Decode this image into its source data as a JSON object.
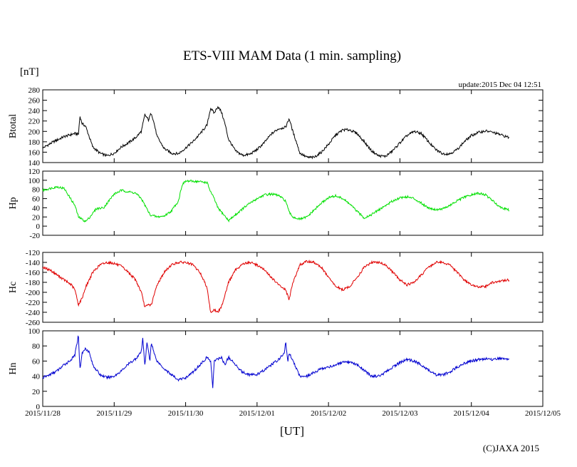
{
  "chart_data": {
    "type": "line",
    "title": "ETS-VIII MAM Data (1 min. sampling)",
    "unit_label": "[nT]",
    "update_text": "update:2015 Dec 04 12:51",
    "xlabel": "[UT]",
    "copyright": "(C)JAXA 2015",
    "x_ticks": [
      "2015/11/28",
      "2015/11/29",
      "2015/11/30",
      "2015/12/01",
      "2015/12/02",
      "2015/12/03",
      "2015/12/04",
      "2015/12/05"
    ],
    "xlim_days": [
      0,
      7
    ],
    "data_end_day": 6.53,
    "panels": [
      {
        "name": "Btotal",
        "ylabel": "Btotal",
        "ylim": [
          140,
          280
        ],
        "yticks": [
          140,
          160,
          180,
          200,
          220,
          240,
          260,
          280
        ],
        "color": "#000000",
        "points": [
          [
            0,
            168
          ],
          [
            0.15,
            180
          ],
          [
            0.3,
            190
          ],
          [
            0.45,
            196
          ],
          [
            0.5,
            194
          ],
          [
            0.52,
            230
          ],
          [
            0.55,
            215
          ],
          [
            0.6,
            210
          ],
          [
            0.7,
            170
          ],
          [
            0.8,
            158
          ],
          [
            0.9,
            153
          ],
          [
            1.0,
            158
          ],
          [
            1.1,
            170
          ],
          [
            1.2,
            178
          ],
          [
            1.3,
            188
          ],
          [
            1.38,
            200
          ],
          [
            1.43,
            232
          ],
          [
            1.48,
            222
          ],
          [
            1.52,
            236
          ],
          [
            1.56,
            215
          ],
          [
            1.6,
            190
          ],
          [
            1.7,
            167
          ],
          [
            1.8,
            158
          ],
          [
            1.9,
            157
          ],
          [
            2.0,
            168
          ],
          [
            2.1,
            180
          ],
          [
            2.2,
            195
          ],
          [
            2.3,
            212
          ],
          [
            2.35,
            245
          ],
          [
            2.4,
            235
          ],
          [
            2.45,
            248
          ],
          [
            2.5,
            238
          ],
          [
            2.55,
            215
          ],
          [
            2.6,
            185
          ],
          [
            2.7,
            162
          ],
          [
            2.8,
            154
          ],
          [
            2.9,
            156
          ],
          [
            3.0,
            165
          ],
          [
            3.1,
            178
          ],
          [
            3.2,
            195
          ],
          [
            3.3,
            205
          ],
          [
            3.4,
            208
          ],
          [
            3.45,
            225
          ],
          [
            3.5,
            200
          ],
          [
            3.55,
            180
          ],
          [
            3.6,
            158
          ],
          [
            3.7,
            150
          ],
          [
            3.8,
            150
          ],
          [
            3.9,
            160
          ],
          [
            4.0,
            175
          ],
          [
            4.1,
            193
          ],
          [
            4.2,
            203
          ],
          [
            4.3,
            203
          ],
          [
            4.4,
            196
          ],
          [
            4.5,
            180
          ],
          [
            4.6,
            163
          ],
          [
            4.7,
            153
          ],
          [
            4.8,
            152
          ],
          [
            4.9,
            163
          ],
          [
            5.0,
            178
          ],
          [
            5.1,
            192
          ],
          [
            5.2,
            200
          ],
          [
            5.3,
            196
          ],
          [
            5.4,
            180
          ],
          [
            5.5,
            165
          ],
          [
            5.6,
            157
          ],
          [
            5.7,
            157
          ],
          [
            5.8,
            165
          ],
          [
            5.9,
            180
          ],
          [
            6.0,
            192
          ],
          [
            6.1,
            198
          ],
          [
            6.2,
            201
          ],
          [
            6.3,
            198
          ],
          [
            6.4,
            194
          ],
          [
            6.53,
            188
          ]
        ]
      },
      {
        "name": "Hp",
        "ylabel": "Hp",
        "ylim": [
          -20,
          120
        ],
        "yticks": [
          -20,
          0,
          20,
          40,
          60,
          80,
          100,
          120
        ],
        "color": "#00e000",
        "points": [
          [
            0,
            78
          ],
          [
            0.1,
            82
          ],
          [
            0.2,
            86
          ],
          [
            0.3,
            82
          ],
          [
            0.35,
            70
          ],
          [
            0.45,
            45
          ],
          [
            0.5,
            20
          ],
          [
            0.6,
            10
          ],
          [
            0.65,
            18
          ],
          [
            0.75,
            38
          ],
          [
            0.85,
            40
          ],
          [
            0.9,
            50
          ],
          [
            1.0,
            70
          ],
          [
            1.1,
            78
          ],
          [
            1.2,
            75
          ],
          [
            1.3,
            72
          ],
          [
            1.38,
            60
          ],
          [
            1.45,
            40
          ],
          [
            1.5,
            25
          ],
          [
            1.6,
            20
          ],
          [
            1.7,
            22
          ],
          [
            1.8,
            33
          ],
          [
            1.9,
            55
          ],
          [
            1.95,
            90
          ],
          [
            2.0,
            98
          ],
          [
            2.1,
            98
          ],
          [
            2.2,
            97
          ],
          [
            2.3,
            95
          ],
          [
            2.35,
            75
          ],
          [
            2.4,
            60
          ],
          [
            2.45,
            40
          ],
          [
            2.55,
            22
          ],
          [
            2.6,
            12
          ],
          [
            2.7,
            25
          ],
          [
            2.8,
            38
          ],
          [
            2.9,
            50
          ],
          [
            3.0,
            60
          ],
          [
            3.1,
            68
          ],
          [
            3.2,
            70
          ],
          [
            3.3,
            67
          ],
          [
            3.4,
            55
          ],
          [
            3.45,
            30
          ],
          [
            3.5,
            20
          ],
          [
            3.6,
            15
          ],
          [
            3.7,
            20
          ],
          [
            3.8,
            35
          ],
          [
            3.9,
            50
          ],
          [
            4.0,
            62
          ],
          [
            4.1,
            66
          ],
          [
            4.2,
            60
          ],
          [
            4.3,
            48
          ],
          [
            4.4,
            32
          ],
          [
            4.5,
            18
          ],
          [
            4.6,
            25
          ],
          [
            4.7,
            35
          ],
          [
            4.8,
            45
          ],
          [
            4.9,
            55
          ],
          [
            5.0,
            62
          ],
          [
            5.1,
            64
          ],
          [
            5.2,
            60
          ],
          [
            5.3,
            50
          ],
          [
            5.4,
            40
          ],
          [
            5.5,
            36
          ],
          [
            5.6,
            38
          ],
          [
            5.7,
            45
          ],
          [
            5.8,
            55
          ],
          [
            5.9,
            63
          ],
          [
            6.0,
            68
          ],
          [
            6.1,
            72
          ],
          [
            6.2,
            68
          ],
          [
            6.3,
            55
          ],
          [
            6.4,
            42
          ],
          [
            6.53,
            35
          ]
        ]
      },
      {
        "name": "Hc",
        "ylabel": "Hc",
        "ylim": [
          -260,
          -120
        ],
        "yticks": [
          -260,
          -240,
          -220,
          -200,
          -180,
          -160,
          -140,
          -120
        ],
        "color": "#e00000",
        "points": [
          [
            0,
            -150
          ],
          [
            0.1,
            -155
          ],
          [
            0.2,
            -165
          ],
          [
            0.3,
            -175
          ],
          [
            0.4,
            -185
          ],
          [
            0.45,
            -195
          ],
          [
            0.5,
            -225
          ],
          [
            0.55,
            -212
          ],
          [
            0.6,
            -190
          ],
          [
            0.7,
            -160
          ],
          [
            0.8,
            -145
          ],
          [
            0.9,
            -140
          ],
          [
            1.0,
            -142
          ],
          [
            1.1,
            -148
          ],
          [
            1.2,
            -160
          ],
          [
            1.3,
            -175
          ],
          [
            1.38,
            -200
          ],
          [
            1.43,
            -230
          ],
          [
            1.48,
            -225
          ],
          [
            1.52,
            -225
          ],
          [
            1.56,
            -205
          ],
          [
            1.6,
            -185
          ],
          [
            1.7,
            -160
          ],
          [
            1.8,
            -145
          ],
          [
            1.9,
            -140
          ],
          [
            2.0,
            -140
          ],
          [
            2.1,
            -145
          ],
          [
            2.2,
            -160
          ],
          [
            2.3,
            -190
          ],
          [
            2.35,
            -240
          ],
          [
            2.4,
            -235
          ],
          [
            2.45,
            -240
          ],
          [
            2.5,
            -230
          ],
          [
            2.55,
            -205
          ],
          [
            2.6,
            -180
          ],
          [
            2.7,
            -155
          ],
          [
            2.8,
            -143
          ],
          [
            2.9,
            -140
          ],
          [
            3.0,
            -145
          ],
          [
            3.1,
            -155
          ],
          [
            3.2,
            -170
          ],
          [
            3.3,
            -185
          ],
          [
            3.4,
            -195
          ],
          [
            3.45,
            -215
          ],
          [
            3.5,
            -180
          ],
          [
            3.6,
            -145
          ],
          [
            3.7,
            -138
          ],
          [
            3.8,
            -140
          ],
          [
            3.9,
            -150
          ],
          [
            4.0,
            -170
          ],
          [
            4.1,
            -188
          ],
          [
            4.2,
            -195
          ],
          [
            4.3,
            -188
          ],
          [
            4.4,
            -170
          ],
          [
            4.5,
            -150
          ],
          [
            4.6,
            -140
          ],
          [
            4.7,
            -140
          ],
          [
            4.8,
            -145
          ],
          [
            4.9,
            -160
          ],
          [
            5.0,
            -175
          ],
          [
            5.1,
            -185
          ],
          [
            5.2,
            -180
          ],
          [
            5.3,
            -165
          ],
          [
            5.4,
            -150
          ],
          [
            5.5,
            -140
          ],
          [
            5.6,
            -140
          ],
          [
            5.7,
            -145
          ],
          [
            5.8,
            -160
          ],
          [
            5.9,
            -175
          ],
          [
            6.0,
            -185
          ],
          [
            6.1,
            -190
          ],
          [
            6.2,
            -188
          ],
          [
            6.3,
            -180
          ],
          [
            6.4,
            -178
          ],
          [
            6.53,
            -175
          ]
        ]
      },
      {
        "name": "Hn",
        "ylabel": "Hn",
        "ylim": [
          0,
          100
        ],
        "yticks": [
          0,
          20,
          40,
          60,
          80,
          100
        ],
        "color": "#0000d0",
        "points": [
          [
            0,
            38
          ],
          [
            0.1,
            42
          ],
          [
            0.2,
            47
          ],
          [
            0.3,
            55
          ],
          [
            0.4,
            62
          ],
          [
            0.45,
            68
          ],
          [
            0.5,
            95
          ],
          [
            0.52,
            48
          ],
          [
            0.55,
            70
          ],
          [
            0.6,
            77
          ],
          [
            0.65,
            72
          ],
          [
            0.7,
            55
          ],
          [
            0.8,
            42
          ],
          [
            0.9,
            38
          ],
          [
            1.0,
            40
          ],
          [
            1.1,
            47
          ],
          [
            1.2,
            56
          ],
          [
            1.3,
            63
          ],
          [
            1.38,
            72
          ],
          [
            1.4,
            90
          ],
          [
            1.43,
            55
          ],
          [
            1.46,
            85
          ],
          [
            1.5,
            60
          ],
          [
            1.52,
            85
          ],
          [
            1.56,
            70
          ],
          [
            1.6,
            60
          ],
          [
            1.7,
            50
          ],
          [
            1.8,
            42
          ],
          [
            1.9,
            35
          ],
          [
            2.0,
            38
          ],
          [
            2.1,
            45
          ],
          [
            2.2,
            55
          ],
          [
            2.3,
            65
          ],
          [
            2.35,
            60
          ],
          [
            2.38,
            25
          ],
          [
            2.4,
            60
          ],
          [
            2.5,
            65
          ],
          [
            2.55,
            55
          ],
          [
            2.6,
            65
          ],
          [
            2.7,
            55
          ],
          [
            2.8,
            45
          ],
          [
            2.9,
            42
          ],
          [
            3.0,
            42
          ],
          [
            3.1,
            48
          ],
          [
            3.2,
            55
          ],
          [
            3.3,
            62
          ],
          [
            3.38,
            70
          ],
          [
            3.4,
            85
          ],
          [
            3.43,
            60
          ],
          [
            3.45,
            70
          ],
          [
            3.5,
            62
          ],
          [
            3.55,
            50
          ],
          [
            3.6,
            40
          ],
          [
            3.7,
            40
          ],
          [
            3.8,
            45
          ],
          [
            3.9,
            50
          ],
          [
            4.0,
            52
          ],
          [
            4.1,
            55
          ],
          [
            4.2,
            58
          ],
          [
            4.3,
            58
          ],
          [
            4.4,
            55
          ],
          [
            4.5,
            48
          ],
          [
            4.6,
            40
          ],
          [
            4.7,
            40
          ],
          [
            4.8,
            45
          ],
          [
            4.9,
            52
          ],
          [
            5.0,
            58
          ],
          [
            5.1,
            62
          ],
          [
            5.2,
            60
          ],
          [
            5.3,
            55
          ],
          [
            5.4,
            48
          ],
          [
            5.5,
            42
          ],
          [
            5.6,
            42
          ],
          [
            5.7,
            45
          ],
          [
            5.8,
            52
          ],
          [
            5.9,
            57
          ],
          [
            6.0,
            60
          ],
          [
            6.1,
            62
          ],
          [
            6.2,
            63
          ],
          [
            6.3,
            62
          ],
          [
            6.4,
            64
          ],
          [
            6.53,
            62
          ]
        ]
      }
    ]
  }
}
